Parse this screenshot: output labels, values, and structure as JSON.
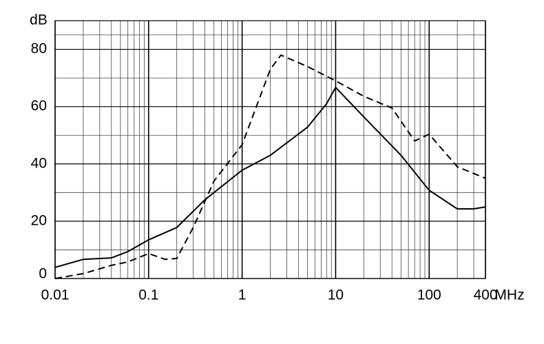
{
  "chart_data": {
    "type": "line",
    "y_label": "dB",
    "x_label": "MHz",
    "xlim": [
      0.01,
      400
    ],
    "xticks": [
      0.01,
      0.1,
      1,
      10,
      100,
      400
    ],
    "xscale": "log",
    "ylim": [
      0,
      90
    ],
    "yticks": [
      0,
      20,
      40,
      60,
      80
    ],
    "grid": true,
    "minor_grid": true,
    "series": [
      {
        "color": "#000000",
        "dash": false,
        "x": [
          0.01,
          0.02,
          0.04,
          0.06,
          0.1,
          0.2,
          0.4,
          1,
          2,
          5,
          8,
          10,
          20,
          50,
          100,
          200,
          300,
          400
        ],
        "values": [
          3.9,
          6.7,
          7.2,
          9.4,
          13.5,
          17.8,
          27.5,
          37.8,
          43,
          52.8,
          61,
          66.7,
          56.4,
          43,
          30.8,
          24.3,
          24.3,
          25
        ]
      },
      {
        "color": "#000000",
        "dash": true,
        "x": [
          0.01,
          0.02,
          0.04,
          0.06,
          0.1,
          0.15,
          0.2,
          0.3,
          0.5,
          1,
          2,
          2.6,
          5,
          10,
          20,
          40,
          70,
          100,
          200,
          400
        ],
        "values": [
          0,
          1.7,
          4.6,
          5.8,
          8.7,
          6.7,
          7,
          17.8,
          34,
          46.7,
          73,
          78,
          74,
          69,
          63.6,
          59.5,
          48,
          50.4,
          39,
          35
        ]
      }
    ]
  }
}
